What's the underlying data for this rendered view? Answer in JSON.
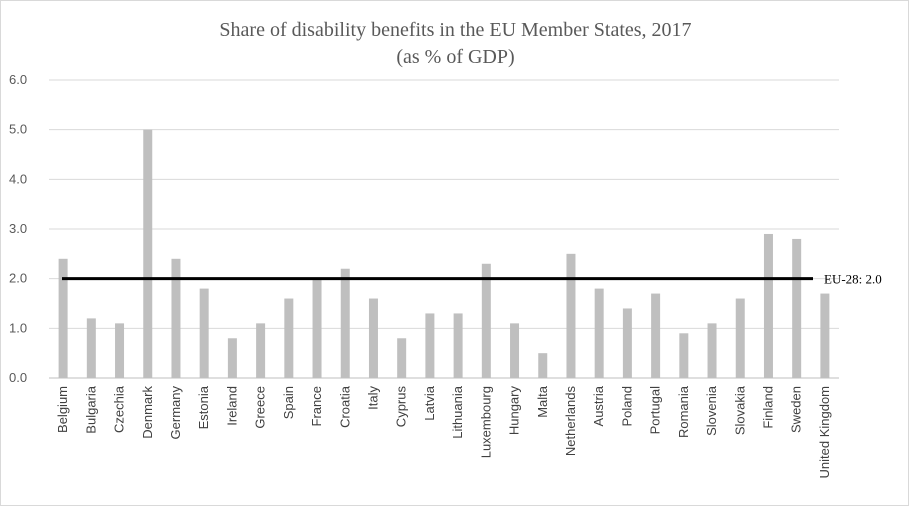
{
  "chart_data": {
    "type": "bar",
    "title": "Share of disability benefits in the EU Member States, 2017",
    "subtitle": "(as % of GDP)",
    "xlabel": "",
    "ylabel": "",
    "ylim": [
      0,
      6
    ],
    "yticks": [
      "0.0",
      "1.0",
      "2.0",
      "3.0",
      "4.0",
      "5.0",
      "6.0"
    ],
    "grid": true,
    "categories": [
      "Belgium",
      "Bulgaria",
      "Czechia",
      "Denmark",
      "Germany",
      "Estonia",
      "Ireland",
      "Greece",
      "Spain",
      "France",
      "Croatia",
      "Italy",
      "Cyprus",
      "Latvia",
      "Lithuania",
      "Luxembourg",
      "Hungary",
      "Malta",
      "Netherlands",
      "Austria",
      "Poland",
      "Portugal",
      "Romania",
      "Slovenia",
      "Slovakia",
      "Finland",
      "Sweden",
      "United Kingdom"
    ],
    "values": [
      2.4,
      1.2,
      1.1,
      5.0,
      2.4,
      1.8,
      0.8,
      1.1,
      1.6,
      2.0,
      2.2,
      1.6,
      0.8,
      1.3,
      1.3,
      2.3,
      1.1,
      0.5,
      2.5,
      1.8,
      1.4,
      1.7,
      0.9,
      1.1,
      1.6,
      2.9,
      2.8,
      1.7
    ],
    "reference_line": {
      "label": "EU-28: 2.0",
      "value": 2.0
    },
    "colors": {
      "bar": "#bfbfbf",
      "reference_line": "#000000",
      "grid": "#d9d9d9",
      "axis": "#bfbfbf"
    }
  }
}
